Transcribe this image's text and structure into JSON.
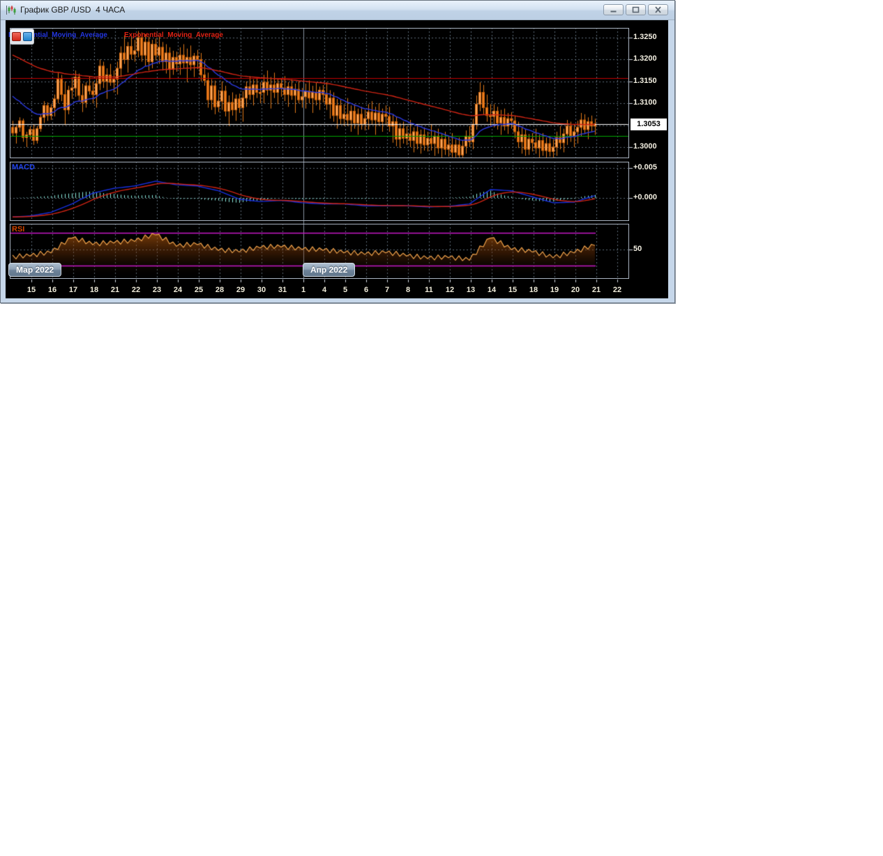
{
  "window": {
    "title": "График GBP /USD  4 ЧАСА",
    "controls": [
      {
        "name": "minimize"
      },
      {
        "name": "maximize"
      },
      {
        "name": "close"
      }
    ]
  },
  "legend": {
    "items": [
      {
        "label": "Exponential_Moving_Average",
        "color": "#2336e0"
      },
      {
        "label": "Exponential_Moving_Average",
        "color": "#e02214"
      }
    ],
    "swatches": [
      {
        "color": "#e04040"
      },
      {
        "color": "#2f9fe0"
      }
    ]
  },
  "panels": {
    "price": {
      "y_ticks": [
        {
          "label": "1.3250",
          "value": 1.325
        },
        {
          "label": "1.3200",
          "value": 1.32
        },
        {
          "label": "1.3150",
          "value": 1.315
        },
        {
          "label": "1.3100",
          "value": 1.31
        },
        {
          "label": "1.3000",
          "value": 1.3
        }
      ],
      "grid_levels": [
        1.325,
        1.32,
        1.315,
        1.31,
        1.305,
        1.3
      ],
      "current": {
        "label": "1.3053",
        "value": 1.3053
      },
      "hlines": [
        {
          "name": "resistance-line",
          "value": 1.3158,
          "color": "#c40000"
        },
        {
          "name": "support-line",
          "value": 1.3025,
          "color": "#00a800"
        },
        {
          "name": "current-price-line",
          "value": 1.3053,
          "color": "#ffffff"
        }
      ]
    },
    "macd": {
      "label": "MACD",
      "y_ticks": [
        {
          "label": "+0.005",
          "value": 0.005
        },
        {
          "label": "+0.000",
          "value": 0.0
        }
      ]
    },
    "rsi": {
      "label": "RSI",
      "y_ticks": [
        {
          "label": "50",
          "value": 50
        }
      ],
      "bands": [
        {
          "value": 70,
          "color": "#c818c8"
        },
        {
          "value": 30,
          "color": "#c818c8"
        }
      ]
    }
  },
  "x_axis": {
    "labels": [
      "15",
      "16",
      "17",
      "18",
      "21",
      "22",
      "23",
      "24",
      "25",
      "28",
      "29",
      "30",
      "31",
      "1",
      "4",
      "5",
      "6",
      "7",
      "8",
      "11",
      "12",
      "13",
      "14",
      "15",
      "18",
      "19",
      "20",
      "21",
      "22"
    ],
    "month_markers": [
      {
        "label": "Мар 2022",
        "boundary_index": -1
      },
      {
        "label": "Апр 2022",
        "boundary_index": 13
      }
    ]
  },
  "chart_data": [
    {
      "type": "candlestick",
      "title": "GBP/USD 4H",
      "price_scale": 0.0001,
      "candles_per_day": 6,
      "ylim": [
        1.2975,
        1.3272
      ],
      "colors": {
        "wick": "#e07818",
        "up_fill": "#f9a55c",
        "up_edge": "#d86c10",
        "down_fill": "#ed7d1e",
        "down_edge": "#c55f08"
      },
      "overlays": [
        {
          "name": "EMA_fast",
          "color": "#2b3ae0",
          "period": 20,
          "seed": 1.3125
        },
        {
          "name": "EMA_slow",
          "color": "#d02414",
          "period": 80,
          "seed": 1.3215
        }
      ],
      "ohlc": [
        [
          13045,
          13060,
          13025,
          13032
        ],
        [
          13032,
          13050,
          13008,
          13045
        ],
        [
          13045,
          13068,
          13035,
          13060
        ],
        [
          13060,
          13065,
          13012,
          13022
        ],
        [
          13022,
          13035,
          13000,
          13028
        ],
        [
          13028,
          13048,
          13018,
          13040
        ],
        [
          13040,
          13052,
          13005,
          13015
        ],
        [
          13015,
          13048,
          13008,
          13042
        ],
        [
          13042,
          13075,
          13035,
          13068
        ],
        [
          13068,
          13105,
          13055,
          13095
        ],
        [
          13095,
          13102,
          13060,
          13072
        ],
        [
          13072,
          13098,
          13062,
          13090
        ],
        [
          13090,
          13120,
          13070,
          13110
        ],
        [
          13110,
          13170,
          13100,
          13155
        ],
        [
          13155,
          13165,
          13105,
          13120
        ],
        [
          13120,
          13150,
          13050,
          13085
        ],
        [
          13085,
          13140,
          13075,
          13130
        ],
        [
          13130,
          13160,
          13110,
          13135
        ],
        [
          13135,
          13175,
          13115,
          13160
        ],
        [
          13160,
          13168,
          13105,
          13118
        ],
        [
          13118,
          13145,
          13080,
          13102
        ],
        [
          13102,
          13148,
          13090,
          13140
        ],
        [
          13140,
          13162,
          13120,
          13128
        ],
        [
          13128,
          13150,
          13100,
          13120
        ],
        [
          13120,
          13158,
          13090,
          13145
        ],
        [
          13145,
          13200,
          13130,
          13185
        ],
        [
          13185,
          13195,
          13135,
          13150
        ],
        [
          13150,
          13180,
          13110,
          13165
        ],
        [
          13165,
          13190,
          13140,
          13148
        ],
        [
          13148,
          13175,
          13125,
          13155
        ],
        [
          13155,
          13195,
          13120,
          13180
        ],
        [
          13180,
          13230,
          13160,
          13215
        ],
        [
          13215,
          13255,
          13190,
          13200
        ],
        [
          13200,
          13240,
          13170,
          13230
        ],
        [
          13230,
          13252,
          13200,
          13212
        ],
        [
          13212,
          13245,
          13195,
          13220
        ],
        [
          13220,
          13265,
          13205,
          13250
        ],
        [
          13250,
          13262,
          13195,
          13210
        ],
        [
          13210,
          13258,
          13185,
          13240
        ],
        [
          13240,
          13252,
          13175,
          13195
        ],
        [
          13195,
          13245,
          13180,
          13235
        ],
        [
          13235,
          13248,
          13198,
          13210
        ],
        [
          13210,
          13252,
          13190,
          13228
        ],
        [
          13228,
          13240,
          13175,
          13195
        ],
        [
          13195,
          13235,
          13168,
          13215
        ],
        [
          13215,
          13228,
          13155,
          13178
        ],
        [
          13178,
          13220,
          13165,
          13205
        ],
        [
          13205,
          13218,
          13172,
          13190
        ],
        [
          13190,
          13228,
          13165,
          13210
        ],
        [
          13210,
          13235,
          13180,
          13192
        ],
        [
          13192,
          13225,
          13148,
          13205
        ],
        [
          13205,
          13232,
          13175,
          13188
        ],
        [
          13188,
          13215,
          13160,
          13208
        ],
        [
          13208,
          13222,
          13178,
          13200
        ],
        [
          13200,
          13215,
          13150,
          13165
        ],
        [
          13165,
          13198,
          13140,
          13152
        ],
        [
          13152,
          13170,
          13090,
          13108
        ],
        [
          13108,
          13155,
          13085,
          13140
        ],
        [
          13140,
          13152,
          13075,
          13092
        ],
        [
          13092,
          13130,
          13080,
          13105
        ],
        [
          13105,
          13150,
          13085,
          13128
        ],
        [
          13128,
          13140,
          13070,
          13082
        ],
        [
          13082,
          13118,
          13048,
          13102
        ],
        [
          13102,
          13125,
          13072,
          13085
        ],
        [
          13085,
          13120,
          13060,
          13110
        ],
        [
          13110,
          13122,
          13078,
          13090
        ],
        [
          13090,
          13128,
          13058,
          13112
        ],
        [
          13112,
          13150,
          13092,
          13138
        ],
        [
          13138,
          13162,
          13108,
          13120
        ],
        [
          13120,
          13155,
          13095,
          13142
        ],
        [
          13142,
          13158,
          13112,
          13125
        ],
        [
          13125,
          13148,
          13100,
          13125
        ],
        [
          13125,
          13165,
          13100,
          13148
        ],
        [
          13148,
          13175,
          13118,
          13130
        ],
        [
          13130,
          13160,
          13088,
          13142
        ],
        [
          13142,
          13170,
          13112,
          13125
        ],
        [
          13125,
          13155,
          13098,
          13145
        ],
        [
          13145,
          13158,
          13115,
          13135
        ],
        [
          13135,
          13162,
          13105,
          13120
        ],
        [
          13120,
          13148,
          13092,
          13138
        ],
        [
          13138,
          13155,
          13108,
          13118
        ],
        [
          13118,
          13145,
          13078,
          13132
        ],
        [
          13132,
          13150,
          13100,
          13108
        ],
        [
          13108,
          13135,
          13090,
          13115
        ],
        [
          13115,
          13145,
          13088,
          13128
        ],
        [
          13128,
          13152,
          13100,
          13112
        ],
        [
          13112,
          13140,
          13078,
          13125
        ],
        [
          13125,
          13148,
          13095,
          13108
        ],
        [
          13108,
          13138,
          13085,
          13130
        ],
        [
          13130,
          13142,
          13102,
          13120
        ],
        [
          13120,
          13148,
          13085,
          13098
        ],
        [
          13098,
          13130,
          13065,
          13112
        ],
        [
          13112,
          13125,
          13058,
          13072
        ],
        [
          13072,
          13110,
          13042,
          13095
        ],
        [
          13095,
          13108,
          13052,
          13065
        ],
        [
          13065,
          13098,
          13048,
          13075
        ],
        [
          13075,
          13112,
          13048,
          13062
        ],
        [
          13062,
          13095,
          13035,
          13082
        ],
        [
          13082,
          13098,
          13042,
          13055
        ],
        [
          13055,
          13088,
          13028,
          13075
        ],
        [
          13075,
          13092,
          13040,
          13052
        ],
        [
          13052,
          13085,
          13038,
          13065
        ],
        [
          13065,
          13098,
          13040,
          13080
        ],
        [
          13080,
          13105,
          13052,
          13062
        ],
        [
          13062,
          13092,
          13028,
          13078
        ],
        [
          13078,
          13100,
          13048,
          13058
        ],
        [
          13058,
          13088,
          13035,
          13075
        ],
        [
          13075,
          13095,
          13050,
          13070
        ],
        [
          13070,
          13092,
          13035,
          13048
        ],
        [
          13048,
          13075,
          13010,
          13058
        ],
        [
          13058,
          13070,
          13002,
          13018
        ],
        [
          13018,
          13055,
          12998,
          13042
        ],
        [
          13042,
          13058,
          13008,
          13020
        ],
        [
          13020,
          13048,
          13005,
          13030
        ],
        [
          13030,
          13062,
          13000,
          13015
        ],
        [
          13015,
          13045,
          12988,
          13035
        ],
        [
          13035,
          13052,
          12995,
          13008
        ],
        [
          13008,
          13040,
          12985,
          13028
        ],
        [
          13028,
          13045,
          12992,
          13005
        ],
        [
          13005,
          13035,
          12990,
          13020
        ],
        [
          13020,
          13052,
          12992,
          13008
        ],
        [
          13008,
          13038,
          12980,
          13025
        ],
        [
          13025,
          13042,
          12985,
          12998
        ],
        [
          12998,
          13030,
          12975,
          13018
        ],
        [
          13018,
          13035,
          12982,
          12995
        ],
        [
          12995,
          13025,
          12978,
          13005
        ],
        [
          13005,
          13032,
          12975,
          12988
        ],
        [
          12988,
          13018,
          12965,
          13005
        ],
        [
          13005,
          13022,
          12970,
          12982
        ],
        [
          12982,
          13015,
          12968,
          13002
        ],
        [
          13002,
          13038,
          12985,
          13025
        ],
        [
          13025,
          13048,
          13000,
          13012
        ],
        [
          13012,
          13065,
          12995,
          13052
        ],
        [
          13052,
          13118,
          13040,
          13098
        ],
        [
          13098,
          13148,
          13082,
          13125
        ],
        [
          13125,
          13142,
          13075,
          13090
        ],
        [
          13090,
          13120,
          13058,
          13072
        ],
        [
          13072,
          13098,
          13048,
          13070
        ],
        [
          13070,
          13098,
          13045,
          13082
        ],
        [
          13082,
          13092,
          13040,
          13055
        ],
        [
          13055,
          13085,
          13028,
          13068
        ],
        [
          13068,
          13088,
          13038,
          13048
        ],
        [
          13048,
          13078,
          13030,
          13065
        ],
        [
          13065,
          13080,
          13042,
          13060
        ],
        [
          13060,
          13072,
          13020,
          13035
        ],
        [
          13035,
          13058,
          12998,
          13012
        ],
        [
          13012,
          13045,
          12985,
          13028
        ],
        [
          13028,
          13040,
          12980,
          12995
        ],
        [
          12995,
          13030,
          12982,
          13018
        ],
        [
          13018,
          13032,
          12990,
          13010
        ],
        [
          13010,
          13042,
          12985,
          12998
        ],
        [
          12998,
          13028,
          12972,
          13015
        ],
        [
          13015,
          13032,
          12980,
          12992
        ],
        [
          12992,
          13022,
          12975,
          13008
        ],
        [
          13008,
          13025,
          12978,
          12990
        ],
        [
          12990,
          13018,
          12975,
          13000
        ],
        [
          13000,
          13035,
          12980,
          13022
        ],
        [
          13022,
          13048,
          12995,
          13010
        ],
        [
          13010,
          13042,
          12988,
          13030
        ],
        [
          13030,
          13062,
          13005,
          13048
        ],
        [
          13048,
          13058,
          13012,
          13025
        ],
        [
          13025,
          13052,
          13000,
          13035
        ],
        [
          13035,
          13060,
          13008,
          13045
        ],
        [
          13045,
          13078,
          13025,
          13062
        ],
        [
          13062,
          13075,
          13030,
          13040
        ],
        [
          13040,
          13068,
          13018,
          13058
        ],
        [
          13058,
          13072,
          13035,
          13048
        ],
        [
          13048,
          13065,
          13028,
          13053
        ]
      ]
    },
    {
      "type": "line",
      "name": "MACD",
      "color": "#1830e0",
      "signal_color": "#d02414",
      "histogram_color": "#8ae8dc",
      "signal_period": 9,
      "start": -0.0032,
      "daily": [
        -0.003,
        -0.0024,
        -0.001,
        0.0008,
        0.0016,
        0.002,
        0.0028,
        0.0022,
        0.002,
        0.0012,
        -0.0002,
        -0.0006,
        -0.0004,
        -0.0008,
        -0.001,
        -0.001,
        -0.0013,
        -0.0013,
        -0.0013,
        -0.0015,
        -0.0014,
        -0.001,
        0.0014,
        0.0012,
        0.0002,
        -0.0008,
        -0.0007,
        0.0004
      ],
      "ylim": [
        -0.0038,
        0.006
      ]
    },
    {
      "type": "area",
      "name": "RSI",
      "color": "#f2a44c",
      "start": 40,
      "daily": [
        42,
        46,
        64,
        56,
        58,
        60,
        68,
        54,
        56,
        49,
        47,
        52,
        53,
        50,
        49,
        46,
        44,
        46,
        42,
        39,
        40,
        37,
        64,
        50,
        47,
        40,
        46,
        55
      ],
      "intraday_pattern": [
        2.5,
        -2.5,
        3.5,
        -2,
        2.5,
        -0.5
      ],
      "levels": {
        "overbought": 70,
        "oversold": 30,
        "mid": 50
      },
      "ylim": [
        13,
        81
      ]
    }
  ]
}
